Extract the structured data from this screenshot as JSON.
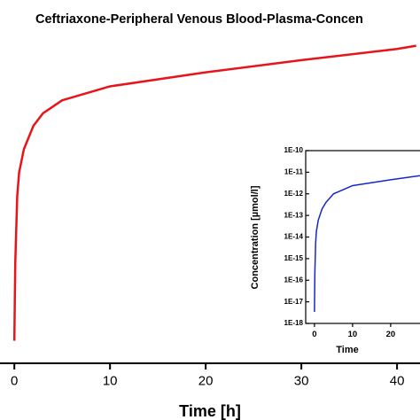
{
  "chart_data": [
    {
      "type": "line",
      "title": "Ceftriaxone-Peripheral Venous Blood-Plasma-Concen",
      "xlabel": "Time [h]",
      "xlim": [
        -1.5,
        42.4
      ],
      "xticks": [
        0,
        10,
        20,
        30,
        40
      ],
      "ylim": [
        1e-18,
        1e-10
      ],
      "log_y": true,
      "series": [
        {
          "color": "#e8141a",
          "x": [
            0,
            0.05,
            0.1,
            0.3,
            0.5,
            1,
            2,
            3,
            5,
            10,
            20,
            30,
            40,
            42
          ],
          "values": [
            3.2e-18,
            2.8e-17,
            1.9e-16,
            5.6e-15,
            1.9e-14,
            6.3e-14,
            2.1e-13,
            4e-13,
            7.8e-13,
            1.6e-12,
            3.3e-12,
            6.2e-12,
            1.1e-11,
            1.3e-11
          ]
        }
      ]
    },
    {
      "type": "line",
      "xlabel": "Time",
      "ylabel": "Concentration [µmol/l]",
      "xlim": [
        -2.3,
        27.7
      ],
      "xticks": [
        0,
        10,
        20
      ],
      "ylim": [
        1e-18,
        1e-10
      ],
      "log_y": true,
      "yticks": [
        {
          "value": 1e-10,
          "label": "1E-10"
        },
        {
          "value": 1e-11,
          "label": "1E-11"
        },
        {
          "value": 1e-12,
          "label": "1E-12"
        },
        {
          "value": 1e-13,
          "label": "1E-13"
        },
        {
          "value": 1e-14,
          "label": "1E-14"
        },
        {
          "value": 1e-15,
          "label": "1E-15"
        },
        {
          "value": 1e-16,
          "label": "1E-16"
        },
        {
          "value": 1e-17,
          "label": "1E-17"
        },
        {
          "value": 1e-18,
          "label": "1E-18"
        }
      ],
      "series": [
        {
          "color": "#1428c8",
          "x": [
            0,
            0.05,
            0.1,
            0.3,
            0.5,
            1,
            2,
            3,
            5,
            10,
            20,
            27.7
          ],
          "values": [
            3.4e-18,
            3e-17,
            2e-16,
            5e-15,
            1.8e-14,
            6e-14,
            2e-13,
            4e-13,
            1e-12,
            2.4e-12,
            4.5e-12,
            6.9e-12
          ]
        }
      ]
    }
  ]
}
